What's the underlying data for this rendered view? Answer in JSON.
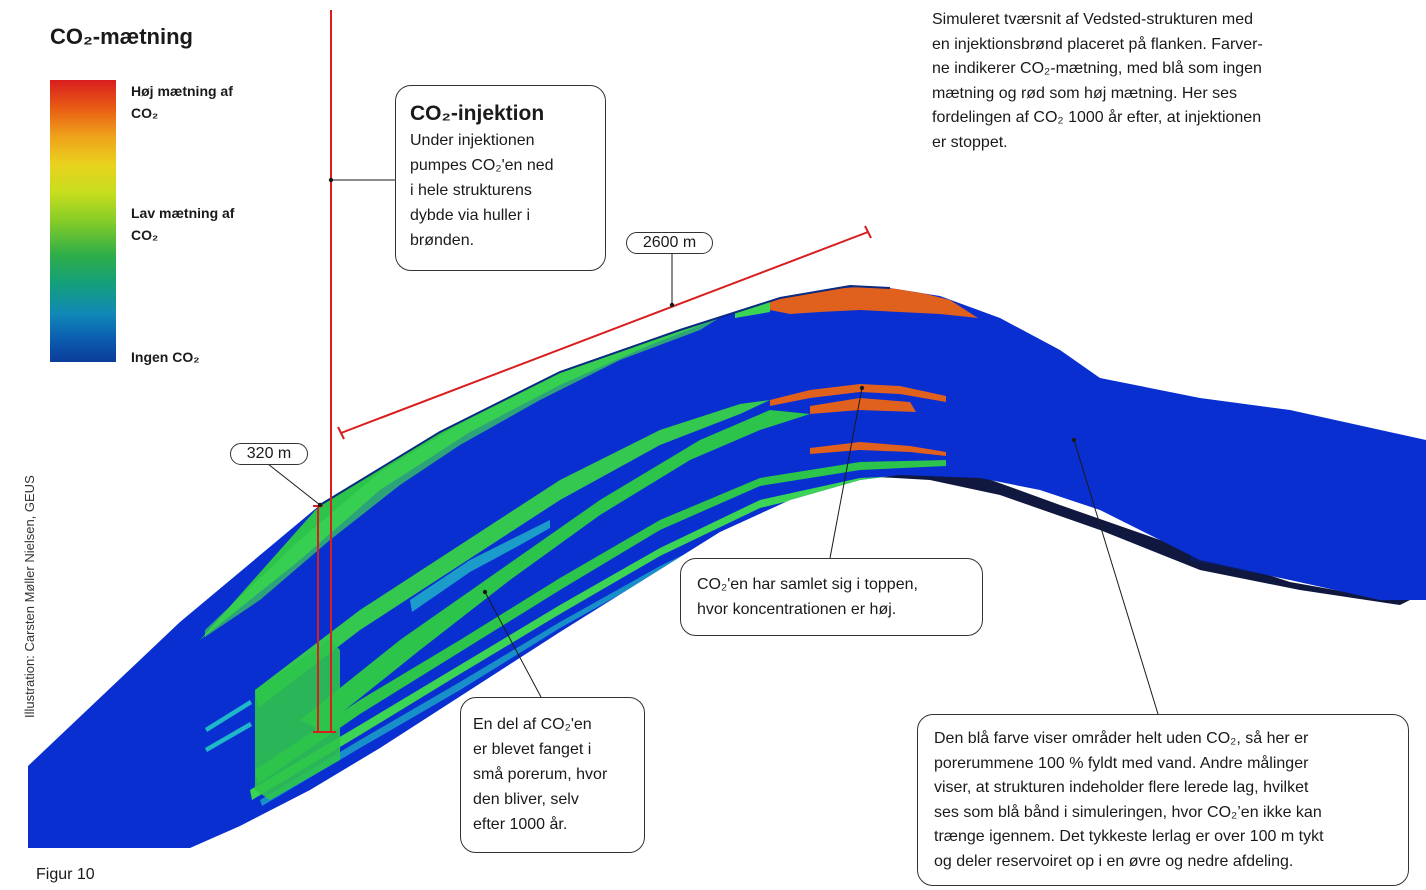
{
  "figure_label": "Figur 10",
  "credit": "Illustration: Carsten Møller Nielsen, GEUS",
  "legend": {
    "title": "CO₂-mætning",
    "high": "Høj mætning af CO₂",
    "low": "Lav mætning af CO₂",
    "none": "Ingen CO₂",
    "colors": {
      "high": "#d81e1e",
      "mid": "#86cc28",
      "low": "#14a07a",
      "none": "#0b3d9a"
    }
  },
  "description": "Simuleret tværsnit af Vedsted-strukturen med en injektionsbrønd placeret på flanken. Farver-ne indikerer CO₂-mætning, med blå som ingen mætning og rød som høj mætning. Her ses fordelingen af CO₂ 1000 år efter, at injektionen er stoppet.",
  "description_lines": [
    "Simuleret tværsnit af Vedsted-strukturen med",
    "en injektionsbrønd placeret på flanken. Farver-",
    "ne indikerer CO₂-mætning, med blå som ingen",
    "mætning og rød som høj mætning. Her ses",
    "fordelingen af CO₂ 1000 år efter, at injektionen",
    "er stoppet."
  ],
  "injection_callout": {
    "title": "CO₂-injektion",
    "lines": [
      "Under injektionen",
      "pumpes CO₂'en ned",
      "i hele strukturens",
      "dybde via huller i",
      "brønden."
    ]
  },
  "top_callout": {
    "lines": [
      "CO₂'en har samlet sig i toppen,",
      "hvor koncentrationen er høj."
    ]
  },
  "trapped_callout": {
    "lines": [
      "En del af CO₂'en",
      "er blevet fanget i",
      "små porerum, hvor",
      "den bliver, selv",
      "efter 1000 år."
    ]
  },
  "blue_callout": {
    "lines": [
      "Den blå farve viser områder helt uden CO₂, så her er",
      "porerummene 100 % fyldt med vand. Andre målinger",
      "viser, at strukturen indeholder flere lerede lag, hvilket",
      "ses som blå bånd i simuleringen, hvor CO₂’en ikke kan",
      "trænge igennem. Det tykkeste lerlag er over 100 m tykt",
      "og deler reservoiret op i en øvre og nedre afdeling."
    ]
  },
  "measurements": {
    "depth": "320 m",
    "length": "2600 m"
  },
  "colors": {
    "well": "#d81e1e",
    "reservoir_blue": "#0a2fd0",
    "co2_green": "#2cc44a",
    "co2_red": "#e0601e"
  }
}
